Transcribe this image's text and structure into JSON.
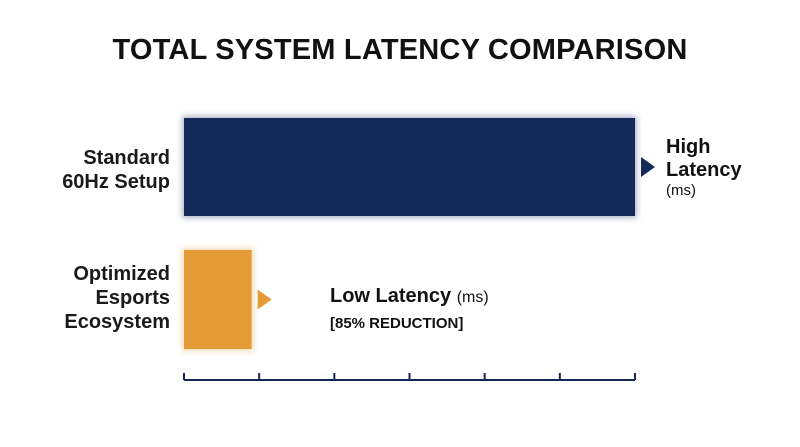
{
  "chart_data": {
    "type": "bar",
    "orientation": "horizontal",
    "title": "TOTAL SYSTEM LATENCY COMPARISON",
    "xlabel": "",
    "ylabel": "",
    "categories": [
      "Standard 60Hz Setup",
      "Optimized Esports Ecosystem"
    ],
    "values": [
      100,
      15
    ],
    "value_unit": "relative latency (%)",
    "xlim": [
      0,
      100
    ],
    "x_ticks": 7,
    "grid": false,
    "bars": [
      {
        "category_line1": "Standard",
        "category_line2": "60Hz Setup",
        "label_main_line1": "High",
        "label_main_line2": "Latency",
        "label_unit": "(ms)",
        "label_note": "",
        "color": "#13295a"
      },
      {
        "category_line1": "Optimized",
        "category_line2": "Esports",
        "category_line3": "Ecosystem",
        "label_main_line1": "Low Latency",
        "label_unit": "(ms)",
        "label_note": "[85% REDUCTION]",
        "color": "#e59c36"
      }
    ]
  }
}
